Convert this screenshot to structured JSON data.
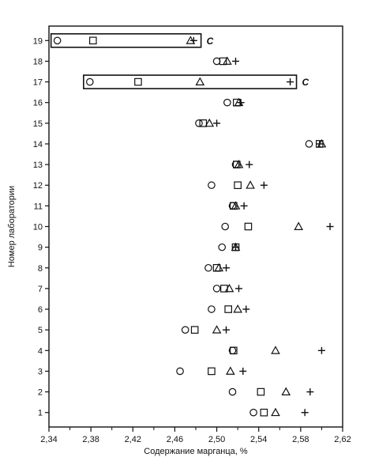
{
  "chart_data": {
    "type": "scatter",
    "title": "",
    "xlabel": "Содержание марганца, %",
    "ylabel": "Номер лаборатории",
    "xlim": [
      2.34,
      2.62
    ],
    "ylim": [
      0.3,
      19.7
    ],
    "grid": false,
    "legend": "none",
    "x_ticks": [
      2.34,
      2.38,
      2.42,
      2.46,
      2.5,
      2.54,
      2.58,
      2.62
    ],
    "x_tick_labels": [
      "2,34",
      "2,38",
      "2,42",
      "2,46",
      "2,50",
      "2,54",
      "2,58",
      "2,62"
    ],
    "y_ticks": [
      1,
      2,
      3,
      4,
      5,
      6,
      7,
      8,
      9,
      10,
      11,
      12,
      13,
      14,
      15,
      16,
      17,
      18,
      19
    ],
    "marker_shapes": [
      "circle",
      "square",
      "triangle",
      "plus"
    ],
    "series": [
      {
        "marker": "circle",
        "values": [
          [
            2.535,
            1
          ],
          [
            2.515,
            2
          ],
          [
            2.465,
            3
          ],
          [
            2.515,
            4
          ],
          [
            2.47,
            5
          ],
          [
            2.495,
            6
          ],
          [
            2.5,
            7
          ],
          [
            2.492,
            8
          ],
          [
            2.505,
            9
          ],
          [
            2.508,
            10
          ],
          [
            2.515,
            11
          ],
          [
            2.495,
            12
          ],
          [
            2.518,
            13
          ],
          [
            2.588,
            14
          ],
          [
            2.483,
            15
          ],
          [
            2.51,
            16
          ],
          [
            2.379,
            17
          ],
          [
            2.5,
            18
          ],
          [
            2.348,
            19
          ]
        ]
      },
      {
        "marker": "square",
        "values": [
          [
            2.545,
            1
          ],
          [
            2.542,
            2
          ],
          [
            2.495,
            3
          ],
          [
            2.516,
            4
          ],
          [
            2.479,
            5
          ],
          [
            2.511,
            6
          ],
          [
            2.507,
            7
          ],
          [
            2.5,
            8
          ],
          [
            2.518,
            9
          ],
          [
            2.53,
            10
          ],
          [
            2.516,
            11
          ],
          [
            2.52,
            12
          ],
          [
            2.519,
            13
          ],
          [
            2.598,
            14
          ],
          [
            2.487,
            15
          ],
          [
            2.519,
            16
          ],
          [
            2.425,
            17
          ],
          [
            2.506,
            18
          ],
          [
            2.382,
            19
          ]
        ]
      },
      {
        "marker": "triangle",
        "values": [
          [
            2.556,
            1
          ],
          [
            2.566,
            2
          ],
          [
            2.513,
            3
          ],
          [
            2.556,
            4
          ],
          [
            2.5,
            5
          ],
          [
            2.52,
            6
          ],
          [
            2.512,
            7
          ],
          [
            2.502,
            8
          ],
          [
            2.518,
            9
          ],
          [
            2.578,
            10
          ],
          [
            2.518,
            11
          ],
          [
            2.532,
            12
          ],
          [
            2.521,
            13
          ],
          [
            2.6,
            14
          ],
          [
            2.493,
            15
          ],
          [
            2.521,
            16
          ],
          [
            2.484,
            17
          ],
          [
            2.51,
            18
          ],
          [
            2.475,
            19
          ]
        ]
      },
      {
        "marker": "plus",
        "values": [
          [
            2.584,
            1
          ],
          [
            2.589,
            2
          ],
          [
            2.525,
            3
          ],
          [
            2.6,
            4
          ],
          [
            2.509,
            5
          ],
          [
            2.528,
            6
          ],
          [
            2.521,
            7
          ],
          [
            2.509,
            8
          ],
          [
            2.518,
            9
          ],
          [
            2.608,
            10
          ],
          [
            2.526,
            11
          ],
          [
            2.545,
            12
          ],
          [
            2.531,
            13
          ],
          [
            2.598,
            14
          ],
          [
            2.5,
            15
          ],
          [
            2.523,
            16
          ],
          [
            2.57,
            17
          ],
          [
            2.518,
            18
          ],
          [
            2.478,
            19
          ]
        ]
      }
    ],
    "annotations": [
      {
        "lab": 19,
        "x_from": 2.342,
        "x_to": 2.485,
        "label": "C"
      },
      {
        "lab": 17,
        "x_from": 2.373,
        "x_to": 2.576,
        "label": "C"
      }
    ]
  }
}
